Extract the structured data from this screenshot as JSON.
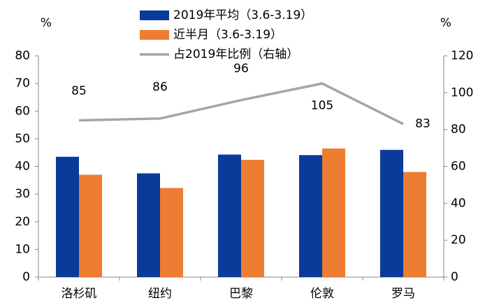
{
  "chart_data": {
    "type": "bar",
    "categories": [
      "洛杉矶",
      "纽约",
      "巴黎",
      "伦敦",
      "罗马"
    ],
    "series": [
      {
        "name": "2019年平均（3.6-3.19）",
        "color": "#0a3a9a",
        "values": [
          43.5,
          37.5,
          44.3,
          44.1,
          46
        ]
      },
      {
        "name": "近半月（3.6-3.19）",
        "color": "#ed7d31",
        "values": [
          37,
          32.2,
          42.4,
          46.5,
          38
        ]
      },
      {
        "name": "占2019年比例（右轴）",
        "color": "#a5a5a5",
        "type": "line",
        "axis": "y2",
        "values": [
          85,
          86,
          96,
          105,
          83
        ]
      }
    ],
    "ylabel": "%",
    "y2label": "%",
    "ylim": [
      0,
      80
    ],
    "yticks": [
      0,
      10,
      20,
      30,
      40,
      50,
      60,
      70,
      80
    ],
    "y2lim": [
      0,
      120
    ],
    "y2ticks": [
      0,
      20,
      40,
      60,
      80,
      100,
      120
    ]
  }
}
